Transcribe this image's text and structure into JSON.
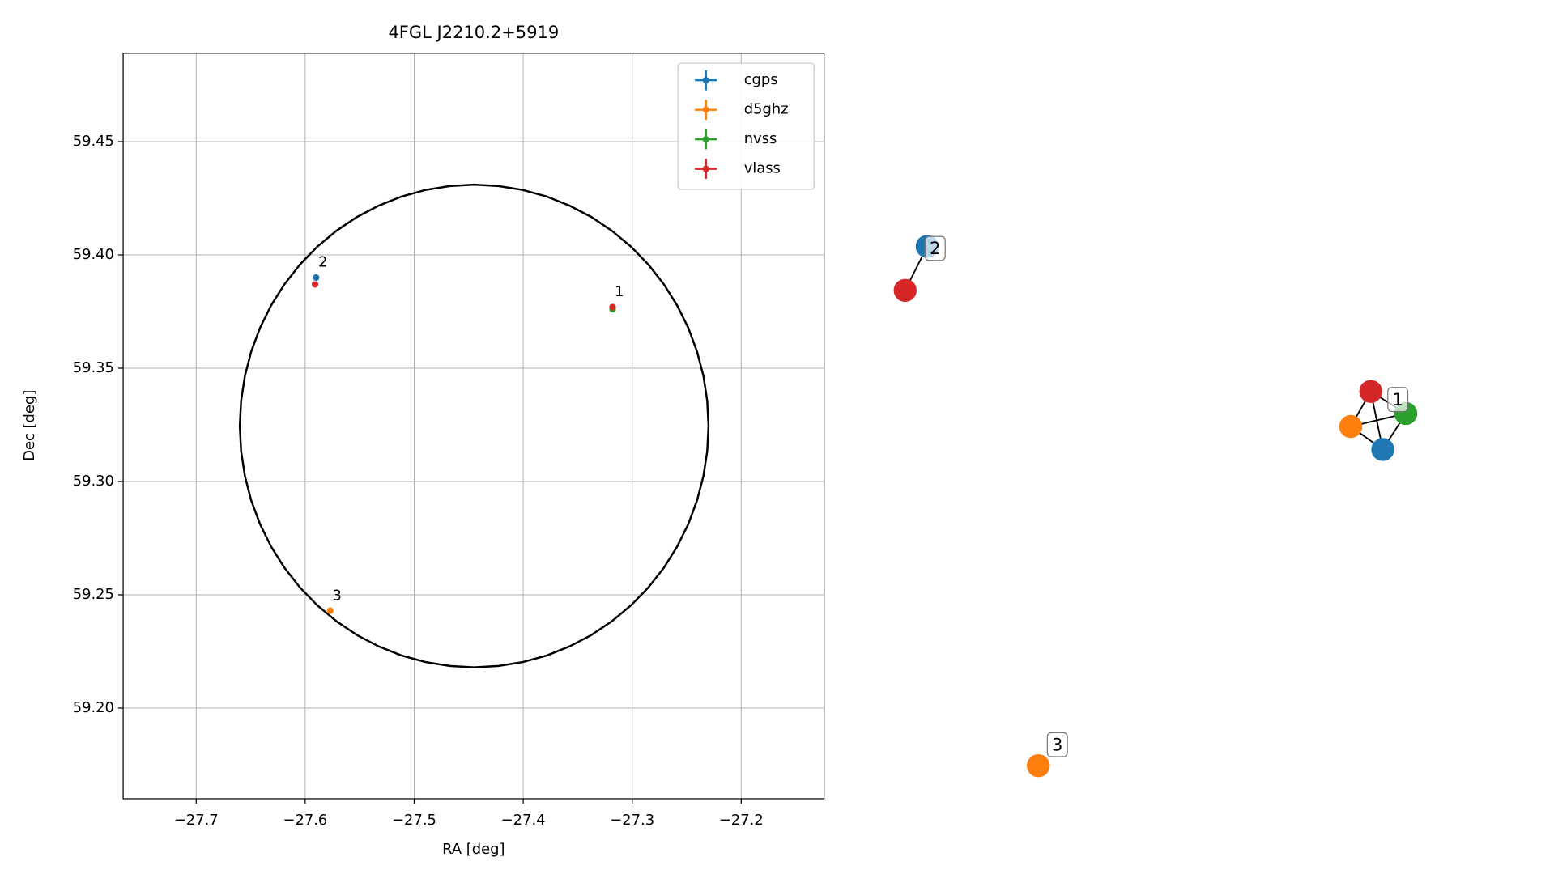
{
  "chart_data": [
    {
      "type": "scatter",
      "title": "4FGL J2210.2+5919",
      "x_label": "RA [deg]",
      "y_label": "Dec [deg]",
      "xlim": [
        -27.767,
        -27.124
      ],
      "ylim": [
        59.16,
        59.489
      ],
      "xticks": [
        {
          "value": -27.7,
          "label": "−27.7"
        },
        {
          "value": -27.6,
          "label": "−27.6"
        },
        {
          "value": -27.5,
          "label": "−27.5"
        },
        {
          "value": -27.4,
          "label": "−27.4"
        },
        {
          "value": -27.3,
          "label": "−27.3"
        },
        {
          "value": -27.2,
          "label": "−27.2"
        }
      ],
      "yticks": [
        {
          "value": 59.2,
          "label": "59.20"
        },
        {
          "value": 59.25,
          "label": "59.25"
        },
        {
          "value": 59.3,
          "label": "59.30"
        },
        {
          "value": 59.35,
          "label": "59.35"
        },
        {
          "value": 59.4,
          "label": "59.40"
        },
        {
          "value": 59.45,
          "label": "59.45"
        }
      ],
      "grid": true,
      "legend": "upper right",
      "series": [
        {
          "name": "cgps",
          "color": "#1f77b4",
          "x": [
            -27.59
          ],
          "values": [
            59.39
          ]
        },
        {
          "name": "d5ghz",
          "color": "#ff7f0e",
          "x": [
            -27.577
          ],
          "values": [
            59.243
          ]
        },
        {
          "name": "nvss",
          "color": "#2ca02c",
          "x": [
            -27.318
          ],
          "values": [
            59.376
          ]
        },
        {
          "name": "vlass",
          "color": "#d62728",
          "x": [
            -27.591,
            -27.318
          ],
          "values": [
            59.387,
            59.377
          ]
        }
      ],
      "ellipse": {
        "x": -27.445,
        "y": 59.3245,
        "rx": 0.215,
        "ry": 0.1065
      },
      "annotations": [
        {
          "text": "1",
          "x": -27.316,
          "y": 59.38
        },
        {
          "text": "2",
          "x": -27.588,
          "y": 59.393
        },
        {
          "text": "3",
          "x": -27.575,
          "y": 59.246
        }
      ]
    },
    {
      "type": "graph",
      "nodes": [
        {
          "color": "#1f77b4"
        },
        {
          "color": "#d62728"
        },
        {
          "color": "#d62728"
        },
        {
          "color": "#2ca02c"
        },
        {
          "color": "#ff7f0e"
        },
        {
          "color": "#1f77b4"
        },
        {
          "color": "#ff7f0e"
        }
      ],
      "edges": [
        [
          0,
          1
        ],
        [
          2,
          4
        ],
        [
          2,
          5
        ],
        [
          2,
          3
        ],
        [
          4,
          3
        ],
        [
          4,
          5
        ],
        [
          3,
          5
        ]
      ],
      "labels": [
        "2",
        "1",
        "3"
      ]
    }
  ]
}
